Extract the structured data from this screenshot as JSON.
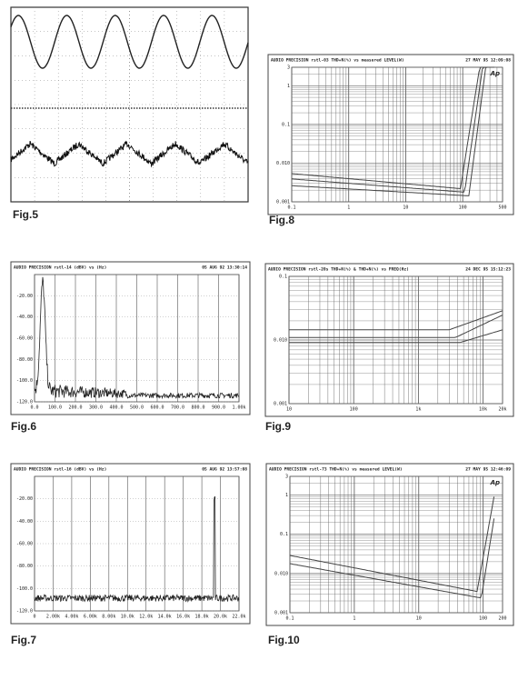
{
  "figures": [
    {
      "caption": "Fig.5"
    },
    {
      "caption": "Fig.8",
      "header": "AUDIO PRECISION rstl-03 THD+N(%) vs measured LEVEL(W)",
      "date": "27 MAY 95 12:09:08",
      "logo": "Ap",
      "y_labels": [
        "3",
        "1",
        "0.1",
        "0.010",
        "0.001"
      ],
      "x_labels": [
        "0.1",
        "1",
        "10",
        "100",
        "500"
      ]
    },
    {
      "caption": "Fig.6",
      "header": "AUDIO PRECISION rstl-14 (dBV) vs (Hz)",
      "date": "05 AUG 92 13:30:14",
      "y_labels": [
        "-20.00",
        "-40.00",
        "-60.00",
        "-80.00",
        "-100.0",
        "-120.0"
      ],
      "x_labels": [
        "0.0",
        "100.0",
        "200.0",
        "300.0",
        "400.0",
        "500.0",
        "600.0",
        "700.0",
        "800.0",
        "900.0",
        "1.00k"
      ]
    },
    {
      "caption": "Fig.9",
      "header": "AUDIO PRECISION rstl-20s THD+N(%) & THD+N(%) vs FREQ(Hz)",
      "date": "24 DEC 95 15:12:23",
      "y_labels": [
        "0.1",
        "0.010",
        "0.001"
      ],
      "x_labels": [
        "10",
        "100",
        "1k",
        "10k",
        "20k"
      ]
    },
    {
      "caption": "Fig.7",
      "header": "AUDIO PRECISION rstl-16 (dBV) vs (Hz)",
      "date": "05 AUG 92 13:57:08",
      "y_labels": [
        "-20.00",
        "-40.00",
        "-60.00",
        "-80.00",
        "-100.0",
        "-120.0"
      ],
      "x_labels": [
        "0",
        "2.00k",
        "4.00k",
        "6.00k",
        "8.00k",
        "10.0k",
        "12.0k",
        "14.0k",
        "16.0k",
        "18.0k",
        "20.0k",
        "22.0k"
      ]
    },
    {
      "caption": "Fig.10",
      "header": "AUDIO PRECISION rstl-73 THD+N(%) vs measured LEVEL(W)",
      "date": "27 MAY 95 12:46:09",
      "logo": "Ap",
      "y_labels": [
        "3",
        "1",
        "0.1",
        "0.010",
        "0.001"
      ],
      "x_labels": [
        "0.1",
        "1",
        "10",
        "100",
        "200"
      ]
    }
  ]
}
